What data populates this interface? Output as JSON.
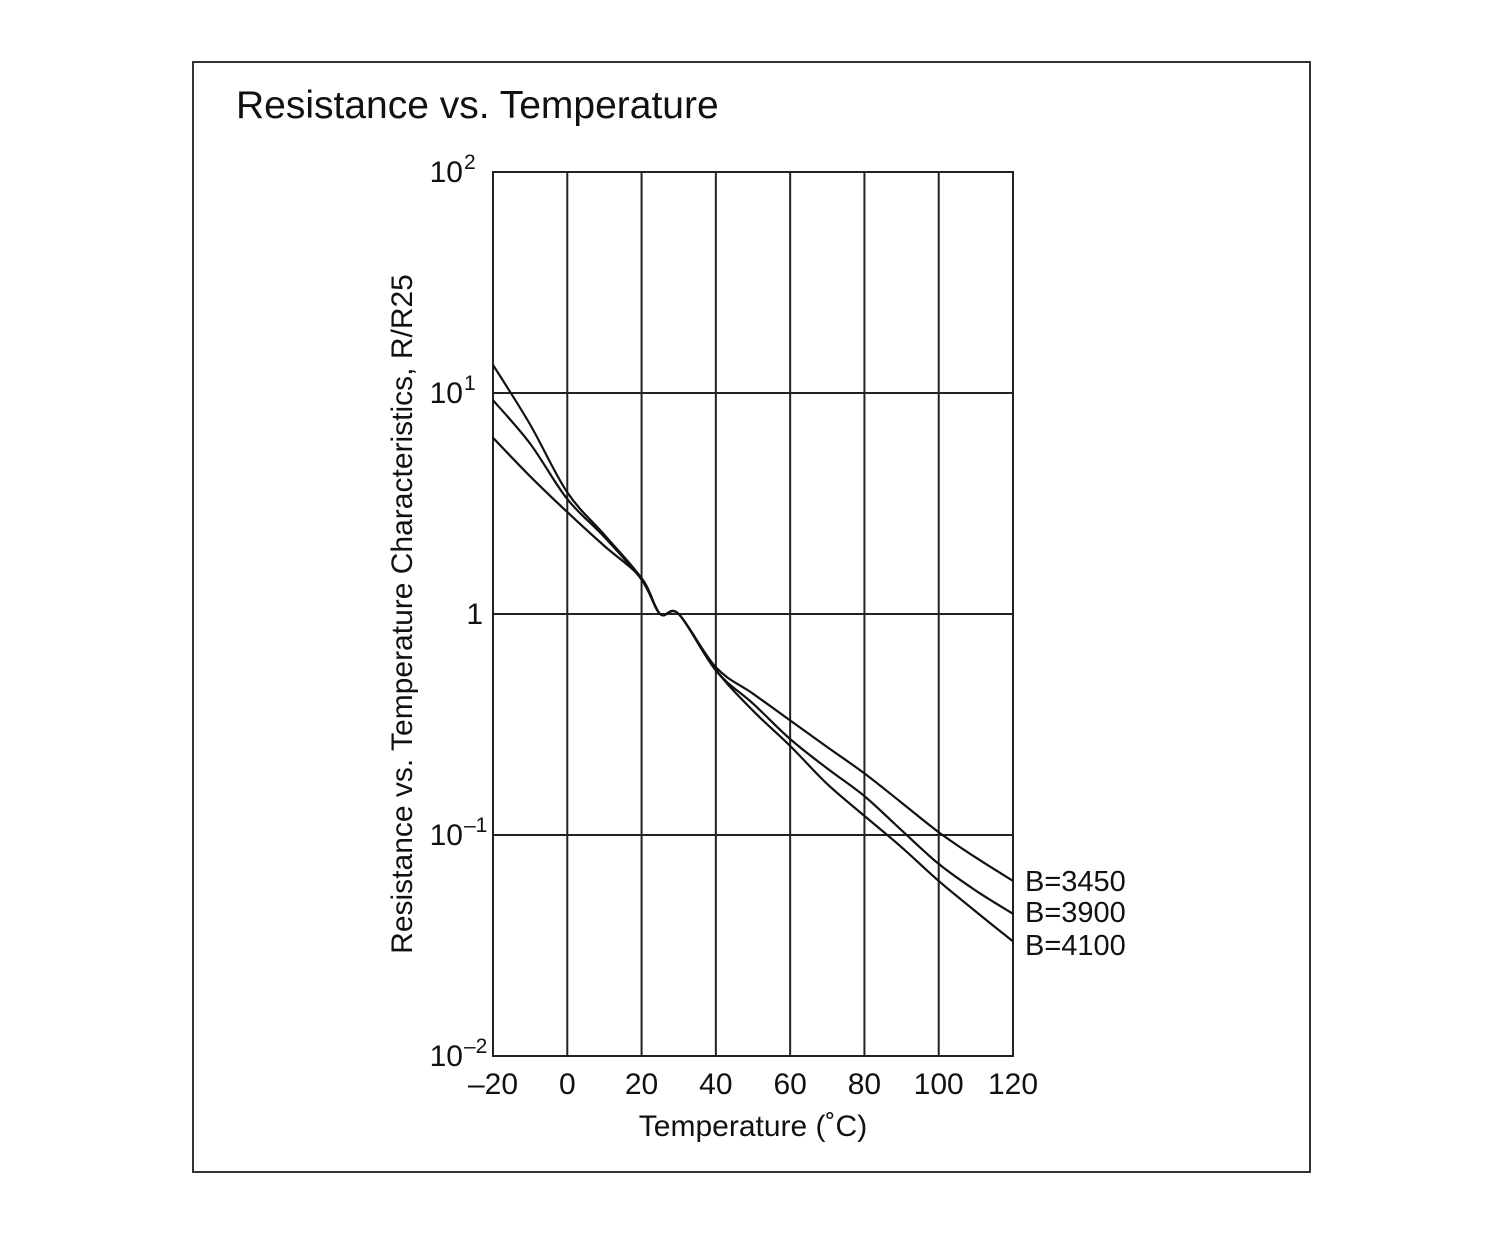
{
  "chart_data": {
    "type": "line",
    "title": "Resistance vs. Temperature",
    "xlabel": "Temperature (˚C)",
    "ylabel": "Resistance vs. Temperature Characteristics, R/R25",
    "xlim": [
      -20,
      120
    ],
    "ylim": [
      0.01,
      100
    ],
    "yscale": "log",
    "grid": true,
    "legend_placement": "right",
    "x_ticks": [
      "–20",
      "0",
      "20",
      "40",
      "60",
      "80",
      "100",
      "120"
    ],
    "y_ticks": [
      {
        "base": "10",
        "exp": "2"
      },
      {
        "base": "10",
        "exp": "1"
      },
      {
        "base": "1",
        "exp": ""
      },
      {
        "base": "10",
        "exp": "–1"
      },
      {
        "base": "10",
        "exp": "–2"
      }
    ],
    "x": [
      -20,
      -10,
      0,
      10,
      20,
      25,
      30,
      40,
      50,
      60,
      70,
      80,
      90,
      100,
      110,
      120
    ],
    "series": [
      {
        "name": "B=3450",
        "values": [
          6.27,
          4.2,
          2.89,
          2.03,
          1.45,
          1.0,
          1.0,
          0.574,
          0.436,
          0.33,
          0.25,
          0.19,
          0.14,
          0.103,
          0.079,
          0.062
        ]
      },
      {
        "name": "B=3900",
        "values": [
          9.28,
          5.9,
          3.31,
          2.23,
          1.43,
          1.0,
          1.0,
          0.555,
          0.393,
          0.272,
          0.2,
          0.15,
          0.105,
          0.074,
          0.056,
          0.044
        ]
      },
      {
        "name": "B=4100",
        "values": [
          13.4,
          7.2,
          3.55,
          2.28,
          1.45,
          1.0,
          1.0,
          0.558,
          0.365,
          0.253,
          0.17,
          0.122,
          0.088,
          0.062,
          0.045,
          0.033
        ]
      }
    ],
    "colors": {
      "line": "#111111",
      "grid": "#222222",
      "frame": "#333333"
    }
  }
}
